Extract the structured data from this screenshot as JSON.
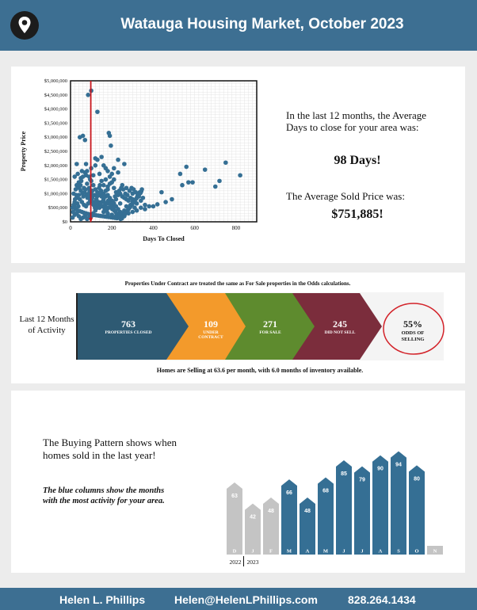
{
  "header": {
    "title": "Watauga Housing Market, October 2023",
    "icon": "map-pin-icon",
    "color": "#3d6f92"
  },
  "scatter": {
    "chart_data": {
      "type": "scatter",
      "xlabel": "Days To Closed",
      "ylabel": "Property Price",
      "xlim": [
        0,
        900
      ],
      "ylim": [
        0,
        5000000
      ],
      "x_ticks": [
        "0",
        "200",
        "400",
        "600",
        "800"
      ],
      "y_ticks": [
        "$0",
        "$500,000",
        "$1,000,000",
        "$1,500,000",
        "$2,000,000",
        "$2,500,000",
        "$3,000,000",
        "$3,500,000",
        "$4,000,000",
        "$4,500,000",
        "$5,000,000"
      ],
      "reference_line_x": 98,
      "points": [
        [
          85,
          4500000
        ],
        [
          100,
          4650000
        ],
        [
          130,
          3900000
        ],
        [
          45,
          3000000
        ],
        [
          60,
          3050000
        ],
        [
          70,
          2900000
        ],
        [
          185,
          3150000
        ],
        [
          190,
          3050000
        ],
        [
          195,
          2700000
        ],
        [
          120,
          2250000
        ],
        [
          130,
          2200000
        ],
        [
          30,
          2050000
        ],
        [
          75,
          2050000
        ],
        [
          160,
          2000000
        ],
        [
          260,
          2050000
        ],
        [
          560,
          1950000
        ],
        [
          650,
          1850000
        ],
        [
          750,
          2100000
        ],
        [
          820,
          1650000
        ],
        [
          530,
          1700000
        ],
        [
          700,
          1250000
        ],
        [
          720,
          1450000
        ],
        [
          570,
          1400000
        ],
        [
          590,
          1400000
        ],
        [
          540,
          1300000
        ],
        [
          440,
          1050000
        ],
        [
          490,
          800000
        ],
        [
          400,
          550000
        ],
        [
          460,
          700000
        ],
        [
          420,
          620000
        ],
        [
          230,
          1750000
        ],
        [
          210,
          1500000
        ],
        [
          250,
          1300000
        ],
        [
          270,
          1200000
        ],
        [
          300,
          1000000
        ],
        [
          330,
          900000
        ],
        [
          350,
          850000
        ],
        [
          310,
          500000
        ],
        [
          270,
          550000
        ],
        [
          240,
          650000
        ],
        [
          220,
          800000
        ],
        [
          180,
          1150000
        ],
        [
          150,
          1450000
        ],
        [
          140,
          1700000
        ],
        [
          110,
          1650000
        ],
        [
          95,
          1500000
        ],
        [
          80,
          1350000
        ],
        [
          65,
          1200000
        ],
        [
          50,
          1100000
        ],
        [
          40,
          950000
        ],
        [
          30,
          850000
        ],
        [
          20,
          700000
        ],
        [
          15,
          600000
        ],
        [
          10,
          500000
        ],
        [
          25,
          450000
        ],
        [
          35,
          400000
        ],
        [
          45,
          380000
        ],
        [
          55,
          350000
        ],
        [
          65,
          320000
        ],
        [
          75,
          300000
        ],
        [
          85,
          280000
        ],
        [
          95,
          260000
        ],
        [
          105,
          250000
        ],
        [
          115,
          240000
        ],
        [
          125,
          230000
        ],
        [
          135,
          220000
        ],
        [
          145,
          210000
        ],
        [
          155,
          200000
        ],
        [
          165,
          190000
        ],
        [
          175,
          180000
        ],
        [
          185,
          170000
        ],
        [
          195,
          160000
        ],
        [
          205,
          150000
        ],
        [
          215,
          140000
        ],
        [
          225,
          130000
        ],
        [
          10,
          150000
        ],
        [
          20,
          250000
        ],
        [
          30,
          300000
        ],
        [
          40,
          200000
        ],
        [
          50,
          100000
        ],
        [
          60,
          150000
        ],
        [
          70,
          200000
        ],
        [
          80,
          100000
        ],
        [
          90,
          150000
        ],
        [
          100,
          200000
        ],
        [
          110,
          300000
        ],
        [
          120,
          400000
        ],
        [
          130,
          500000
        ],
        [
          140,
          600000
        ],
        [
          150,
          700000
        ],
        [
          160,
          800000
        ],
        [
          170,
          900000
        ],
        [
          180,
          950000
        ],
        [
          190,
          850000
        ],
        [
          200,
          750000
        ],
        [
          210,
          650000
        ],
        [
          220,
          550000
        ],
        [
          230,
          450000
        ],
        [
          240,
          350000
        ],
        [
          250,
          300000
        ],
        [
          260,
          400000
        ],
        [
          280,
          450000
        ],
        [
          290,
          600000
        ],
        [
          300,
          700000
        ],
        [
          320,
          650000
        ],
        [
          340,
          750000
        ],
        [
          360,
          600000
        ],
        [
          30,
          1300000
        ],
        [
          40,
          1400000
        ],
        [
          50,
          1550000
        ],
        [
          60,
          1600000
        ],
        [
          70,
          1750000
        ],
        [
          80,
          1800000
        ],
        [
          90,
          1600000
        ],
        [
          100,
          1450000
        ],
        [
          110,
          1300000
        ],
        [
          120,
          1150000
        ],
        [
          130,
          1050000
        ],
        [
          140,
          950000
        ],
        [
          150,
          900000
        ],
        [
          160,
          1000000
        ],
        [
          170,
          1100000
        ],
        [
          180,
          1250000
        ],
        [
          190,
          1350000
        ],
        [
          200,
          1400000
        ],
        [
          210,
          1200000
        ],
        [
          220,
          1050000
        ],
        [
          230,
          950000
        ],
        [
          240,
          1000000
        ],
        [
          250,
          900000
        ],
        [
          260,
          850000
        ],
        [
          270,
          800000
        ],
        [
          280,
          750000
        ],
        [
          290,
          850000
        ],
        [
          300,
          800000
        ],
        [
          15,
          1000000
        ],
        [
          25,
          1150000
        ],
        [
          35,
          1250000
        ],
        [
          45,
          800000
        ],
        [
          55,
          700000
        ],
        [
          65,
          600000
        ],
        [
          75,
          550000
        ],
        [
          85,
          650000
        ],
        [
          95,
          750000
        ],
        [
          105,
          850000
        ],
        [
          115,
          950000
        ],
        [
          125,
          800000
        ],
        [
          135,
          700000
        ],
        [
          145,
          650000
        ],
        [
          155,
          550000
        ],
        [
          165,
          450000
        ],
        [
          175,
          400000
        ],
        [
          185,
          500000
        ],
        [
          195,
          600000
        ],
        [
          205,
          700000
        ],
        [
          215,
          900000
        ],
        [
          225,
          1000000
        ],
        [
          235,
          1100000
        ],
        [
          245,
          1200000
        ],
        [
          255,
          1150000
        ],
        [
          265,
          1000000
        ],
        [
          275,
          950000
        ],
        [
          285,
          1100000
        ],
        [
          295,
          1200000
        ],
        [
          305,
          1150000
        ],
        [
          315,
          1050000
        ],
        [
          325,
          950000
        ],
        [
          335,
          1050000
        ],
        [
          20,
          1600000
        ],
        [
          35,
          1700000
        ],
        [
          55,
          1800000
        ],
        [
          75,
          1650000
        ],
        [
          90,
          1200000
        ],
        [
          100,
          1000000
        ],
        [
          105,
          1100000
        ],
        [
          115,
          700000
        ],
        [
          125,
          600000
        ],
        [
          140,
          500000
        ],
        [
          160,
          350000
        ],
        [
          180,
          300000
        ],
        [
          200,
          250000
        ],
        [
          220,
          200000
        ],
        [
          240,
          250000
        ],
        [
          260,
          200000
        ],
        [
          280,
          300000
        ],
        [
          300,
          350000
        ],
        [
          320,
          400000
        ],
        [
          340,
          500000
        ],
        [
          360,
          450000
        ],
        [
          380,
          550000
        ],
        [
          12,
          350000
        ],
        [
          18,
          550000
        ],
        [
          22,
          800000
        ],
        [
          28,
          950000
        ],
        [
          33,
          650000
        ],
        [
          38,
          550000
        ],
        [
          42,
          1200000
        ],
        [
          48,
          1300000
        ],
        [
          52,
          1450000
        ],
        [
          58,
          1000000
        ],
        [
          62,
          900000
        ],
        [
          68,
          1050000
        ],
        [
          72,
          1150000
        ],
        [
          78,
          950000
        ],
        [
          82,
          850000
        ],
        [
          88,
          1000000
        ],
        [
          92,
          1100000
        ],
        [
          98,
          900000
        ],
        [
          102,
          800000
        ],
        [
          108,
          700000
        ],
        [
          112,
          600000
        ],
        [
          118,
          500000
        ],
        [
          122,
          700000
        ],
        [
          128,
          900000
        ],
        [
          132,
          1000000
        ],
        [
          138,
          1200000
        ],
        [
          142,
          1300000
        ],
        [
          148,
          1100000
        ],
        [
          152,
          1000000
        ],
        [
          158,
          900000
        ],
        [
          162,
          700000
        ],
        [
          168,
          600000
        ],
        [
          172,
          500000
        ],
        [
          178,
          650000
        ],
        [
          182,
          750000
        ],
        [
          188,
          700000
        ],
        [
          192,
          650000
        ],
        [
          198,
          550000
        ],
        [
          202,
          450000
        ],
        [
          208,
          500000
        ],
        [
          212,
          400000
        ],
        [
          218,
          350000
        ],
        [
          222,
          300000
        ],
        [
          228,
          250000
        ],
        [
          232,
          200000
        ],
        [
          238,
          150000
        ],
        [
          242,
          100000
        ],
        [
          248,
          120000
        ],
        [
          252,
          180000
        ],
        [
          258,
          220000
        ],
        [
          262,
          260000
        ],
        [
          268,
          320000
        ],
        [
          272,
          380000
        ],
        [
          278,
          420000
        ],
        [
          282,
          480000
        ],
        [
          288,
          520000
        ],
        [
          292,
          580000
        ],
        [
          298,
          620000
        ],
        [
          302,
          680000
        ],
        [
          308,
          720000
        ],
        [
          312,
          780000
        ],
        [
          318,
          820000
        ],
        [
          322,
          880000
        ],
        [
          328,
          920000
        ],
        [
          332,
          980000
        ],
        [
          338,
          1020000
        ],
        [
          342,
          1080000
        ],
        [
          345,
          1150000
        ],
        [
          160,
          1300000
        ],
        [
          170,
          1500000
        ],
        [
          180,
          1800000
        ],
        [
          190,
          1600000
        ],
        [
          200,
          1700000
        ],
        [
          210,
          1900000
        ],
        [
          230,
          2200000
        ],
        [
          170,
          1900000
        ],
        [
          120,
          2000000
        ],
        [
          100,
          1900000
        ],
        [
          150,
          2300000
        ]
      ]
    }
  },
  "stats": {
    "days_intro": "In the last 12 months, the Average Days to close for your area was:",
    "days_value": "98 Days!",
    "price_intro": "The Average Sold Price was:",
    "price_value": "$751,885!"
  },
  "odds": {
    "note_top": "Properties Under Contract are treated the same as For Sale properties in the Odds calculations.",
    "side_label": "Last 12 Months of Activity",
    "segments": [
      {
        "number": "763",
        "label": "PROPERTIES CLOSED",
        "color": "#2e5a73"
      },
      {
        "number": "109",
        "label": "UNDER CONTRACT",
        "color": "#f39a2b"
      },
      {
        "number": "271",
        "label": "FOR SALE",
        "color": "#5e8b2e"
      },
      {
        "number": "245",
        "label": "DID NOT SELL",
        "color": "#7b2d3c"
      }
    ],
    "result_number": "55%",
    "result_label": "ODDS OF SELLING",
    "note_bottom": "Homes are Selling at 63.6 per month, with 6.0 months of inventory available."
  },
  "pattern": {
    "intro": "The Buying Pattern shows when homes sold in the last year!",
    "explain": "The blue columns show the months with the most activity for your area.",
    "chart_data": {
      "type": "bar",
      "categories": [
        "D",
        "J",
        "F",
        "M",
        "A",
        "M",
        "J",
        "J",
        "A",
        "S",
        "O",
        "N"
      ],
      "values": [
        63,
        42,
        48,
        66,
        48,
        68,
        85,
        79,
        90,
        94,
        80,
        null
      ],
      "highlight": [
        false,
        false,
        false,
        true,
        true,
        true,
        true,
        true,
        true,
        true,
        true,
        false
      ],
      "years": [
        "2022",
        "2023"
      ],
      "colors": {
        "highlight": "#356f94",
        "normal": "#c4c4c4"
      }
    }
  },
  "footer": {
    "name": "Helen L. Phillips",
    "email": "Helen@HelenLPhillips.com",
    "phone": "828.264.1434"
  }
}
